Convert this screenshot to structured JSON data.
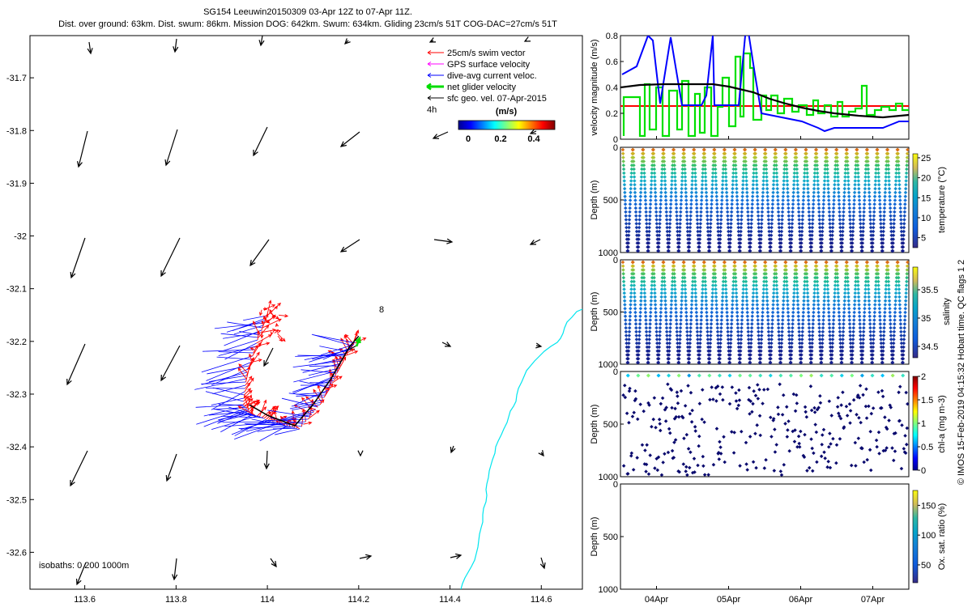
{
  "title": {
    "line1": "SG154 Leeuwin20150309 03-Apr 12Z to 07-Apr 11Z.",
    "line2": "Dist. over ground: 63km. Dist. swum: 86km. Mission DOG: 642km. Swum: 634km. Gliding 23cm/s 51T COG-DAC=27cm/s 51T"
  },
  "map": {
    "legend": [
      {
        "label": "25cm/s swim vector",
        "color": "#ff0000"
      },
      {
        "label": "GPS surface velocity",
        "color": "#ff00ff"
      },
      {
        "label": "dive-avg current veloc.",
        "color": "#0000ff"
      },
      {
        "label": "net glider velocity",
        "color": "#00dd00"
      },
      {
        "label": "sfc geo. vel. 07-Apr-2015",
        "color": "#000000"
      }
    ],
    "interval_label": "4h",
    "colorbar_unit": "(m/s)",
    "colorbar_ticks": [
      "0",
      "0.2",
      "0.4"
    ],
    "number_label": "8",
    "isobaths_label": "isobaths: 0   200  1000m",
    "coast_color": "#00e5ee"
  },
  "chart_data": [
    {
      "type": "scatter",
      "name": "map",
      "x_ticks": [
        "113.6",
        "113.8",
        "114",
        "114.2",
        "114.4",
        "114.6"
      ],
      "y_ticks": [
        "-31.7",
        "-31.8",
        "-31.9",
        "-32",
        "-32.1",
        "-32.2",
        "-32.3",
        "-32.4",
        "-32.5",
        "-32.6"
      ],
      "xlim": [
        113.48,
        114.69
      ],
      "ylim": [
        -32.67,
        -31.62
      ],
      "glider_track": [
        [
          113.96,
          -32.32
        ],
        [
          114.0,
          -32.34
        ],
        [
          114.06,
          -32.36
        ],
        [
          114.1,
          -32.32
        ],
        [
          114.14,
          -32.27
        ],
        [
          114.18,
          -32.21
        ],
        [
          114.2,
          -32.19
        ]
      ],
      "vector_grid_lon": [
        113.6,
        113.8,
        114.0,
        114.2,
        114.4,
        114.6
      ],
      "vector_grid_lat": [
        -31.65,
        -31.84,
        -32.04,
        -32.24,
        -32.44,
        -32.64
      ]
    },
    {
      "type": "line",
      "name": "velocity",
      "ylabel": "velocity magnitude (m/s)",
      "ylim": [
        0,
        0.8
      ],
      "y_ticks": [
        "0",
        "0.2",
        "0.4",
        "0.6",
        "0.8"
      ],
      "x_ticks": [
        "04Apr",
        "05Apr",
        "06Apr",
        "07Apr"
      ],
      "xlim": [
        0,
        4
      ]
    },
    {
      "type": "scatter",
      "name": "temperature",
      "ylabel": "Depth (m)",
      "ylim": [
        1000,
        0
      ],
      "y_ticks": [
        "0",
        "500",
        "1000"
      ],
      "colorbar_label": "temperature (°C)",
      "colorbar_ticks": [
        "5",
        "10",
        "15",
        "20",
        "25"
      ]
    },
    {
      "type": "scatter",
      "name": "salinity",
      "ylabel": "Depth (m)",
      "ylim": [
        1000,
        0
      ],
      "y_ticks": [
        "0",
        "500",
        "1000"
      ],
      "colorbar_label": "salinity",
      "colorbar_ticks": [
        "34.5",
        "35",
        "35.5"
      ]
    },
    {
      "type": "scatter",
      "name": "chla",
      "ylabel": "Depth (m)",
      "ylim": [
        1000,
        0
      ],
      "y_ticks": [
        "0",
        "500",
        "1000"
      ],
      "colorbar_label": "chl-a (mg m-3)",
      "colorbar_ticks": [
        "0",
        "0.5",
        "1",
        "1.5",
        "2"
      ]
    },
    {
      "type": "scatter",
      "name": "oxygen",
      "ylabel": "Depth (m)",
      "ylim": [
        1000,
        0
      ],
      "y_ticks": [
        "0",
        "500",
        "1000"
      ],
      "colorbar_label": "Ox. sat. ratio (%)",
      "colorbar_ticks": [
        "50",
        "100",
        "150"
      ]
    }
  ],
  "credit": "© IMOS 15-Feb-2019 04:15:32 Hobart time. QC flags 1  2"
}
